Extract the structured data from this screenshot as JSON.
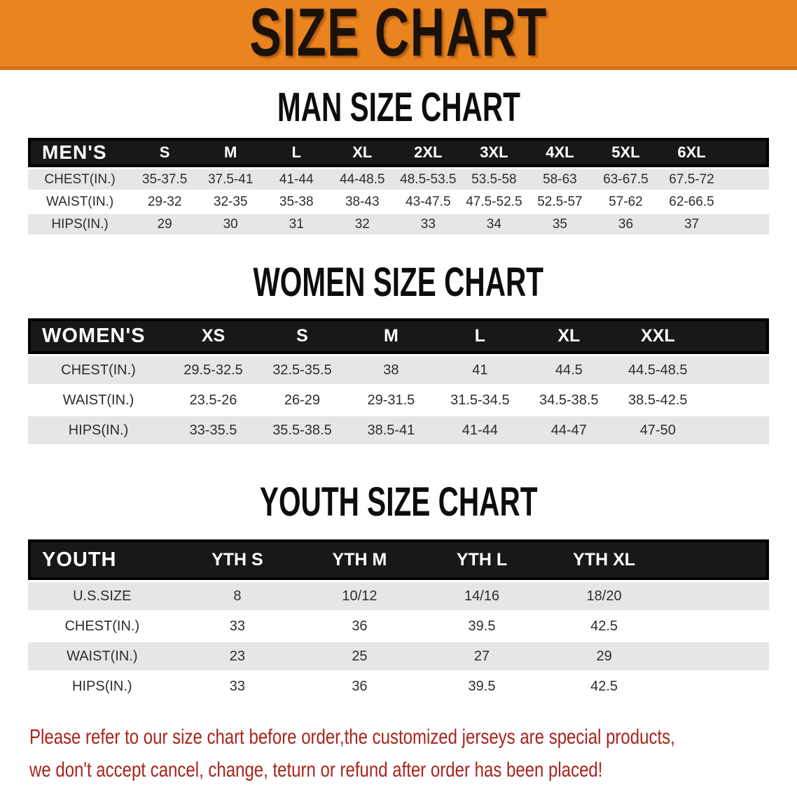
{
  "banner": {
    "title": "SIZE CHART"
  },
  "men": {
    "heading": "MAN SIZE CHART",
    "table": {
      "label": "MEN'S",
      "columns": [
        "S",
        "M",
        "L",
        "XL",
        "2XL",
        "3XL",
        "4XL",
        "5XL",
        "6XL"
      ],
      "rows": [
        {
          "label": "CHEST(IN.)",
          "values": [
            "35-37.5",
            "37.5-41",
            "41-44",
            "44-48.5",
            "48.5-53.5",
            "53.5-58",
            "58-63",
            "63-67.5",
            "67.5-72"
          ]
        },
        {
          "label": "WAIST(IN.)",
          "values": [
            "29-32",
            "32-35",
            "35-38",
            "38-43",
            "43-47.5",
            "47.5-52.5",
            "52.5-57",
            "57-62",
            "62-66.5"
          ]
        },
        {
          "label": "HIPS(IN.)",
          "values": [
            "29",
            "30",
            "31",
            "32",
            "33",
            "34",
            "35",
            "36",
            "37"
          ]
        }
      ]
    }
  },
  "women": {
    "heading": "WOMEN SIZE CHART",
    "table": {
      "label": "WOMEN'S",
      "columns": [
        "XS",
        "S",
        "M",
        "L",
        "XL",
        "XXL"
      ],
      "rows": [
        {
          "label": "CHEST(IN.)",
          "values": [
            "29.5-32.5",
            "32.5-35.5",
            "38",
            "41",
            "44.5",
            "44.5-48.5"
          ]
        },
        {
          "label": "WAIST(IN.)",
          "values": [
            "23.5-26",
            "26-29",
            "29-31.5",
            "31.5-34.5",
            "34.5-38.5",
            "38.5-42.5"
          ]
        },
        {
          "label": "HIPS(IN.)",
          "values": [
            "33-35.5",
            "35.5-38.5",
            "38.5-41",
            "41-44",
            "44-47",
            "47-50"
          ]
        }
      ]
    }
  },
  "youth": {
    "heading": "YOUTH SIZE CHART",
    "table": {
      "label": "YOUTH",
      "columns": [
        "YTH S",
        "YTH M",
        "YTH L",
        "YTH XL"
      ],
      "rows": [
        {
          "label": "U.S.SIZE",
          "values": [
            "8",
            "10/12",
            "14/16",
            "18/20"
          ]
        },
        {
          "label": "CHEST(IN.)",
          "values": [
            "33",
            "36",
            "39.5",
            "42.5"
          ]
        },
        {
          "label": "WAIST(IN.)",
          "values": [
            "23",
            "25",
            "27",
            "29"
          ]
        },
        {
          "label": "HIPS(IN.)",
          "values": [
            "33",
            "36",
            "39.5",
            "42.5"
          ]
        }
      ]
    }
  },
  "footer": {
    "line1": "Please refer to our size chart before order,the customized jerseys are special products,",
    "line2": "we don't accept cancel, change, teturn or refund after order has been placed!"
  },
  "colors": {
    "banner_orange": "#E9841E",
    "banner_border": "#D0721A",
    "header_black": "#181818",
    "row_gray": "#E6E6E6",
    "footer_red": "#A9231C"
  }
}
